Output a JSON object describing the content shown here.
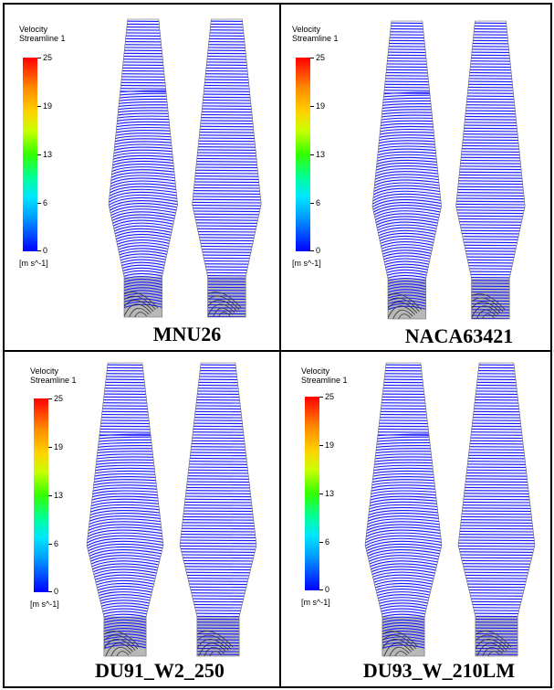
{
  "panels": [
    {
      "legend": {
        "title_line1": "Velocity",
        "title_line2": "Streamline 1",
        "ticks": [
          "25",
          "19",
          "13",
          "6",
          "0"
        ],
        "units": "[m s^-1]"
      },
      "caption": "MNU26"
    },
    {
      "legend": {
        "title_line1": "Velocity",
        "title_line2": "Streamline 1",
        "ticks": [
          "25",
          "19",
          "13",
          "6",
          "0"
        ],
        "units": "[m s^-1]"
      },
      "caption": "NACA63421"
    },
    {
      "legend": {
        "title_line1": "Velocity",
        "title_line2": "Streamline 1",
        "ticks": [
          "25",
          "19",
          "13",
          "6",
          "0"
        ],
        "units": "[m s^-1]"
      },
      "caption": "DU91_W2_250"
    },
    {
      "legend": {
        "title_line1": "Velocity",
        "title_line2": "Streamline 1",
        "ticks": [
          "25",
          "19",
          "13",
          "6",
          "0"
        ],
        "units": "[m s^-1]"
      },
      "caption": "DU93_W_210LM"
    }
  ],
  "colors": {
    "streamline": "#1a1aff",
    "hub_gray": "#b8b8b8",
    "border": "#000000"
  }
}
